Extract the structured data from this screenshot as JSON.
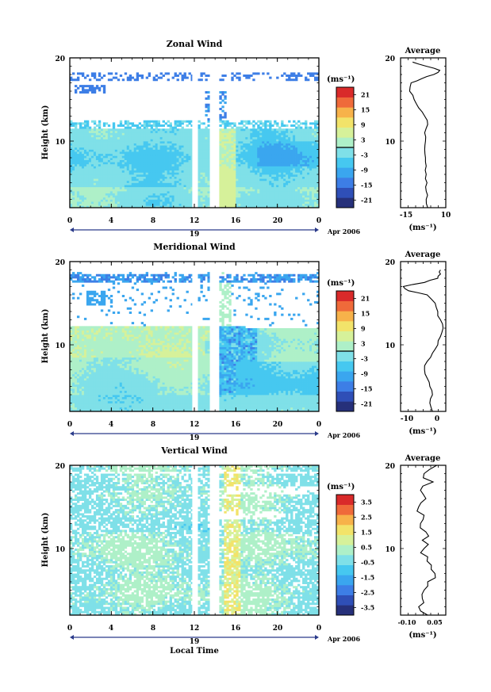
{
  "colors": {
    "colormap": [
      "#26307a",
      "#2f4fb7",
      "#3d7ee6",
      "#3aa6ef",
      "#46c8f0",
      "#7fe0e8",
      "#aef0c8",
      "#d6f19a",
      "#f2e36a",
      "#f7b24a",
      "#ef6a3a",
      "#d92a2a"
    ],
    "contour": "#000000",
    "frame": "#000000"
  },
  "shared": {
    "height_label": "Height (km)",
    "unit_label": "(ms⁻¹)",
    "average_title": "Average",
    "date_label": "Apr 2006",
    "day_label": "19",
    "x_tick_labels": [
      "0",
      "4",
      "8",
      "12",
      "16",
      "20",
      "0"
    ],
    "height_ticks": [
      "20",
      "10"
    ],
    "local_time_label": "Local Time"
  },
  "chart_data": [
    {
      "type": "heatmap",
      "title": "Zonal Wind",
      "ylabel": "Height (km)",
      "ylim": [
        2,
        20
      ],
      "xlim": [
        0,
        24
      ],
      "x_ticks": [
        0,
        4,
        8,
        12,
        16,
        20,
        24
      ],
      "y_ticks": [
        10,
        20
      ],
      "colorbar_ticks": [
        "21",
        "15",
        "9",
        "3",
        "-3",
        "-9",
        "-15",
        "-21"
      ],
      "colorbar_range": [
        -24,
        24
      ],
      "data_gaps_hours": [
        [
          11.8,
          12.3
        ],
        [
          13.5,
          14.3
        ]
      ],
      "average_profile": {
        "title": "Average",
        "xlabel": "(ms⁻¹)",
        "x_tick_labels": [
          "-15",
          "10"
        ],
        "xlim": [
          -20,
          10
        ],
        "height": [
          2,
          3,
          4,
          5,
          6,
          7,
          8,
          9,
          10,
          11,
          12,
          13,
          14,
          15,
          16,
          17,
          17.5,
          18,
          18.5,
          19,
          19.5
        ],
        "values": [
          -2,
          -3,
          -3,
          -2.5,
          -3,
          -3,
          -3.5,
          -4,
          -3.5,
          -4,
          -2,
          -4,
          -8,
          -11,
          -14,
          -13,
          -6,
          2,
          6,
          -3,
          -12
        ]
      }
    },
    {
      "type": "heatmap",
      "title": "Meridional Wind",
      "ylabel": "Height (km)",
      "ylim": [
        2,
        20
      ],
      "xlim": [
        0,
        24
      ],
      "x_ticks": [
        0,
        4,
        8,
        12,
        16,
        20,
        24
      ],
      "y_ticks": [
        10,
        20
      ],
      "colorbar_ticks": [
        "21",
        "15",
        "9",
        "3",
        "-3",
        "-9",
        "-15",
        "-21"
      ],
      "colorbar_range": [
        -24,
        24
      ],
      "data_gaps_hours": [
        [
          11.8,
          12.3
        ],
        [
          13.5,
          14.3
        ]
      ],
      "average_profile": {
        "title": "Average",
        "xlabel": "(ms⁻¹)",
        "x_tick_labels": [
          "-10",
          "0"
        ],
        "xlim": [
          -13,
          4
        ],
        "height": [
          2,
          3,
          4,
          5,
          6,
          7,
          8,
          9,
          10,
          11,
          12,
          13,
          14,
          15,
          16,
          16.5,
          17,
          17.5,
          18,
          18.5,
          19
        ],
        "values": [
          -1,
          -2,
          -1,
          -2,
          -3,
          -4,
          -3,
          -1,
          1,
          2,
          3,
          2,
          1,
          0,
          -3,
          -10,
          -12,
          -4,
          1,
          2,
          2
        ]
      }
    },
    {
      "type": "heatmap",
      "title": "Vertical Wind",
      "ylabel": "Height (km)",
      "xlabel": "Local Time",
      "ylim": [
        2,
        20
      ],
      "xlim": [
        0,
        24
      ],
      "x_ticks": [
        0,
        4,
        8,
        12,
        16,
        20,
        24
      ],
      "y_ticks": [
        10,
        20
      ],
      "colorbar_ticks": [
        "3.5",
        "2.5",
        "1.5",
        "0.5",
        "-0.5",
        "-1.5",
        "-2.5",
        "-3.5"
      ],
      "colorbar_range": [
        -4,
        4
      ],
      "data_gaps_hours": [
        [
          11.8,
          12.3
        ],
        [
          13.5,
          14.3
        ]
      ],
      "average_profile": {
        "title": "Average",
        "xlabel": "(ms⁻¹)",
        "x_tick_labels": [
          "-0.10",
          "0.05"
        ],
        "xlim": [
          -0.15,
          0.1
        ],
        "height": [
          2,
          3,
          4,
          5,
          6,
          7,
          8,
          9,
          10,
          11,
          12,
          13,
          14,
          15,
          16,
          17,
          18,
          19,
          20
        ],
        "values": [
          0.0,
          -0.05,
          -0.03,
          -0.02,
          0.0,
          0.04,
          0.02,
          0.0,
          -0.02,
          -0.03,
          -0.01,
          -0.04,
          -0.02,
          -0.05,
          -0.01,
          -0.04,
          0.03,
          -0.02,
          0.05
        ]
      }
    }
  ]
}
